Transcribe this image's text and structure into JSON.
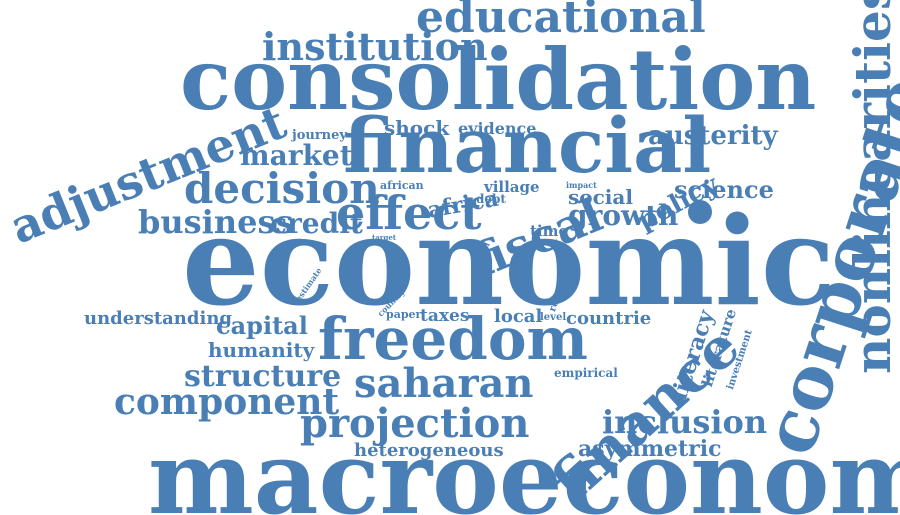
{
  "colors": {
    "word": "#4a7fb5",
    "background": "#ffffff"
  },
  "words": {
    "educational": "educational",
    "institution": "institution",
    "consolidation": "consolidation",
    "nonlinearities": "nonlinearities",
    "adjustment": "adjustment",
    "journey": "journey",
    "shock": "shock",
    "evidence": "evidence",
    "austerity": "austerity",
    "market": "market",
    "financial": "financial",
    "corporate": "corporate",
    "decision": "decision",
    "african": "african",
    "africa": "africa",
    "village": "village",
    "impact": "impact",
    "policy": "policy",
    "science": "science",
    "debt": "debt",
    "social": "social",
    "business": "business",
    "credit": "credit",
    "effect": "effect",
    "fiscal": "fiscal",
    "growth": "growth",
    "target": "target",
    "time": "time",
    "economic": "economic",
    "model": "model",
    "estimate": "estimate",
    "resource": "resource",
    "country": "country",
    "understanding": "understanding",
    "capital": "capital",
    "paper": "paper",
    "taxes": "taxes",
    "local": "local",
    "level": "level",
    "countrie": "countrie",
    "literacy": "literacy",
    "literature": "literature",
    "investment": "investment",
    "freedom": "freedom",
    "humanity": "humanity",
    "finance": "finance",
    "structure": "structure",
    "empirical": "empirical",
    "saharan": "saharan",
    "component": "component",
    "inclusion": "inclusion",
    "projection": "projection",
    "heterogeneous": "heterogeneous",
    "asymmetric": "asymmetric",
    "macroeconomic": "macroeconomic"
  }
}
